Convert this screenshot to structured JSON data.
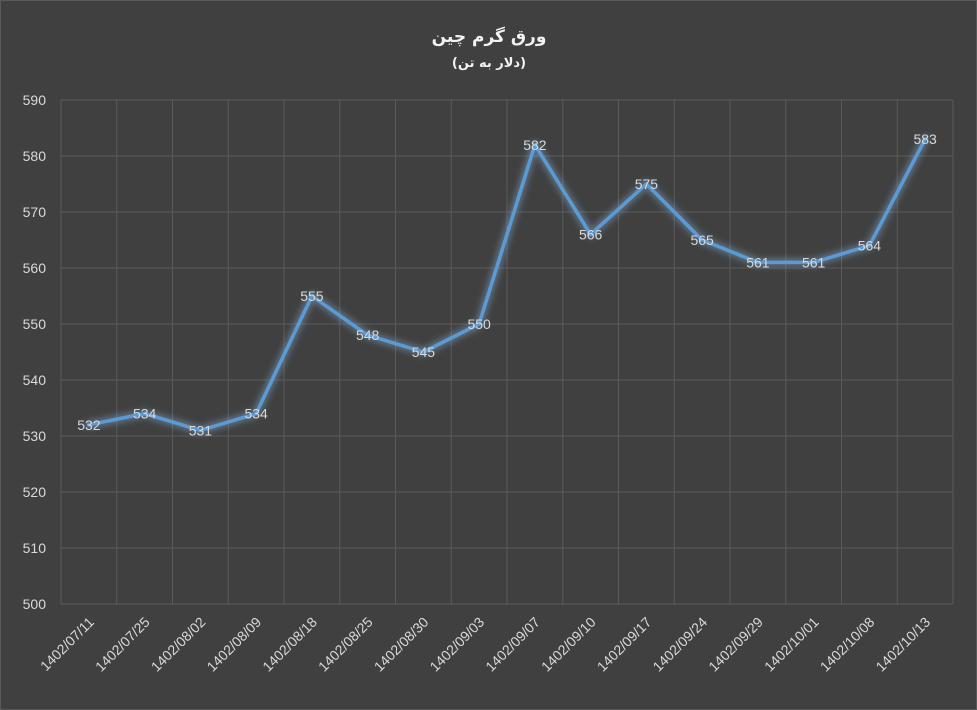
{
  "chart_data": {
    "type": "line",
    "title": "ورق گرم چین",
    "subtitle": "(دلار به تن)",
    "xlabel": "",
    "ylabel": "",
    "categories": [
      "1402/07/11",
      "1402/07/25",
      "1402/08/02",
      "1402/08/09",
      "1402/08/18",
      "1402/08/25",
      "1402/08/30",
      "1402/09/03",
      "1402/09/07",
      "1402/09/10",
      "1402/09/17",
      "1402/09/24",
      "1402/09/29",
      "1402/10/01",
      "1402/10/08",
      "1402/10/13"
    ],
    "series": [
      {
        "values": [
          532,
          534,
          531,
          534,
          555,
          548,
          545,
          550,
          582,
          566,
          575,
          565,
          561,
          561,
          564,
          583
        ]
      }
    ],
    "ylim": [
      500,
      590
    ],
    "yticks": [
      500,
      510,
      520,
      530,
      540,
      550,
      560,
      570,
      580,
      590
    ],
    "grid": true,
    "legend": "none",
    "colors": {
      "background": "#404040",
      "line": "#5b9bd5",
      "grid": "#5a5a5a",
      "text": "#d9d9d9"
    }
  }
}
